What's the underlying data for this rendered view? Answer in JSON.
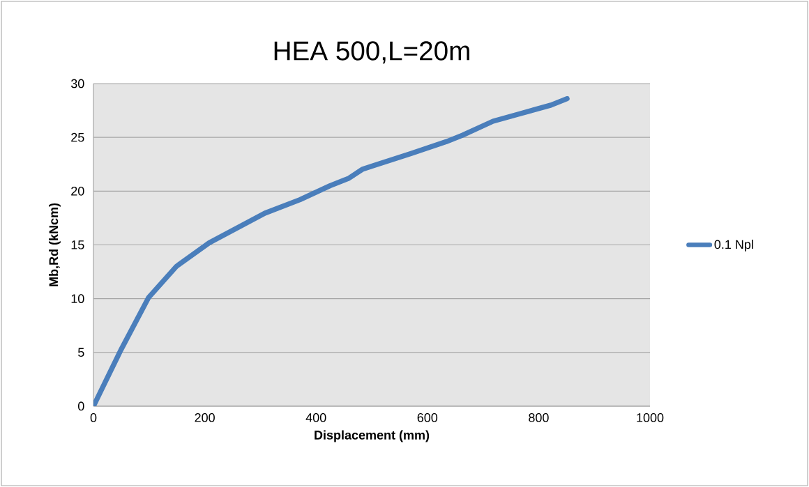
{
  "chart_data": {
    "type": "line",
    "title": "HEA 500,L=20m",
    "xlabel": "Displacement (mm)",
    "ylabel": "Mb,Rd (kNcm)",
    "xlim": [
      0,
      1000
    ],
    "xticks": [
      0,
      200,
      400,
      600,
      800,
      1000
    ],
    "ylim": [
      0,
      30
    ],
    "yticks": [
      0,
      5,
      10,
      15,
      20,
      25,
      30
    ],
    "grid": "y",
    "legend": "right",
    "marker": "none",
    "line_style": "solid",
    "series": [
      {
        "name": "0.1 Npl",
        "color": "#4a7ebb",
        "x": [
          0,
          49,
          99,
          149,
          208,
          308,
          371,
          425,
          459,
          484,
          505,
          571,
          634,
          663,
          718,
          763,
          822,
          851
        ],
        "values": [
          0,
          5.2,
          10.1,
          13.0,
          15.2,
          17.95,
          19.2,
          20.5,
          21.2,
          22.05,
          22.4,
          23.5,
          24.6,
          25.2,
          26.5,
          27.15,
          28.0,
          28.6
        ]
      }
    ]
  }
}
